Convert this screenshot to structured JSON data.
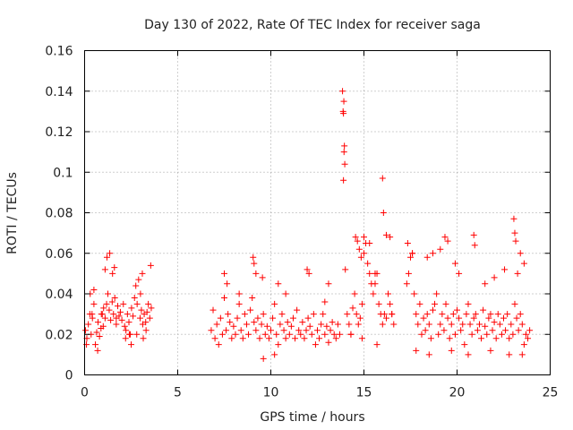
{
  "chart_data": {
    "type": "scatter",
    "title": "Day 130 of 2022, Rate Of TEC Index for receiver saga",
    "xlabel": "GPS time / hours",
    "ylabel": "ROTI / TECUs",
    "xlim": [
      0,
      25
    ],
    "ylim": [
      0,
      0.16
    ],
    "xticks": [
      0,
      5,
      10,
      15,
      20,
      25
    ],
    "xtick_labels": [
      "0",
      "5",
      "10",
      "15",
      "20",
      "25"
    ],
    "yticks": [
      0,
      0.02,
      0.04,
      0.06,
      0.08,
      0.1,
      0.12,
      0.14,
      0.16
    ],
    "ytick_labels": [
      "0",
      "0.02",
      "0.04",
      "0.06",
      "0.08",
      "0.1",
      "0.12",
      "0.14",
      "0.16"
    ],
    "grid": true,
    "marker": "plus",
    "color": "#ff0000",
    "series": [
      {
        "x": [
          0.05,
          0.12,
          0.2,
          0.28,
          0.35,
          0.42,
          0.5,
          0.58,
          0.65,
          0.72,
          0.8,
          0.88,
          0.95,
          1.02,
          1.1,
          1.18,
          1.25,
          1.32,
          1.4,
          1.48,
          1.55,
          1.62,
          1.7,
          1.78,
          1.85,
          1.92,
          2.0,
          2.08,
          2.15,
          2.22,
          2.3,
          2.38,
          2.45,
          2.52,
          2.6,
          2.68,
          2.75,
          2.82,
          2.9,
          2.98,
          3.05,
          3.12,
          3.2,
          3.28,
          3.35,
          3.42,
          3.5,
          3.58,
          0.1,
          0.3,
          0.5,
          0.7,
          0.9,
          1.1,
          1.2,
          1.35,
          1.5,
          1.6,
          2.2,
          2.5,
          2.8,
          3.0,
          3.1,
          3.3,
          3.55,
          0.4,
          1.0,
          1.7,
          2.4,
          3.15,
          6.8,
          6.9,
          7.0,
          7.1,
          7.2,
          7.3,
          7.4,
          7.5,
          7.6,
          7.7,
          7.8,
          7.9,
          8.0,
          8.1,
          8.2,
          8.3,
          8.4,
          8.5,
          8.6,
          8.7,
          8.8,
          8.9,
          9.0,
          9.1,
          9.2,
          9.3,
          9.4,
          9.5,
          9.6,
          9.7,
          9.8,
          9.9,
          10.0,
          10.1,
          10.2,
          10.3,
          10.4,
          10.5,
          10.6,
          10.7,
          10.8,
          10.9,
          11.0,
          11.1,
          11.2,
          11.3,
          11.4,
          11.5,
          11.6,
          11.7,
          11.8,
          11.9,
          12.0,
          12.1,
          12.2,
          12.3,
          12.4,
          12.5,
          12.6,
          12.7,
          12.8,
          12.9,
          13.0,
          13.1,
          13.2,
          13.3,
          13.4,
          13.5,
          13.6,
          13.7,
          7.5,
          7.65,
          8.3,
          9.05,
          9.1,
          9.2,
          9.55,
          10.4,
          10.8,
          11.95,
          12.05,
          12.9,
          13.1,
          9.6,
          10.2,
          13.85,
          13.88,
          13.9,
          13.92,
          13.95,
          13.97,
          13.9,
          13.93,
          14.0,
          14.1,
          14.2,
          14.3,
          14.4,
          14.5,
          14.6,
          14.7,
          14.8,
          14.9,
          15.0,
          15.1,
          15.2,
          15.3,
          15.4,
          15.5,
          15.6,
          15.7,
          15.8,
          15.9,
          16.0,
          16.1,
          16.2,
          16.3,
          16.4,
          16.5,
          16.6,
          14.55,
          14.65,
          14.75,
          14.85,
          15.0,
          15.3,
          15.6,
          16.0,
          16.05,
          16.2,
          16.4,
          14.3,
          14.9,
          15.7,
          16.5,
          17.3,
          17.4,
          17.5,
          17.6,
          17.7,
          17.8,
          17.9,
          18.0,
          18.1,
          18.2,
          18.3,
          18.4,
          18.5,
          18.6,
          18.7,
          18.8,
          18.9,
          19.0,
          19.1,
          19.2,
          19.3,
          19.4,
          19.5,
          19.6,
          19.7,
          19.8,
          19.9,
          20.0,
          20.1,
          20.2,
          20.3,
          20.4,
          20.5,
          20.6,
          20.7,
          20.8,
          20.9,
          21.0,
          21.1,
          21.2,
          21.3,
          21.4,
          21.5,
          21.6,
          21.7,
          21.8,
          21.9,
          22.0,
          22.1,
          22.2,
          22.3,
          22.4,
          22.5,
          22.6,
          22.7,
          22.8,
          22.9,
          23.0,
          23.1,
          23.2,
          23.3,
          23.4,
          23.5,
          23.6,
          23.7,
          23.8,
          23.9,
          17.35,
          17.6,
          18.4,
          18.7,
          19.1,
          19.35,
          19.5,
          19.9,
          20.1,
          20.9,
          20.95,
          21.5,
          22.0,
          22.55,
          23.05,
          23.1,
          23.15,
          23.25,
          23.4,
          23.6,
          17.8,
          18.5,
          19.7,
          20.6,
          21.8,
          22.8,
          23.5
        ],
        "y": [
          0.022,
          0.018,
          0.025,
          0.03,
          0.02,
          0.028,
          0.035,
          0.015,
          0.021,
          0.026,
          0.019,
          0.023,
          0.03,
          0.033,
          0.028,
          0.035,
          0.04,
          0.032,
          0.027,
          0.036,
          0.03,
          0.038,
          0.025,
          0.034,
          0.029,
          0.031,
          0.027,
          0.035,
          0.024,
          0.022,
          0.03,
          0.026,
          0.02,
          0.033,
          0.029,
          0.038,
          0.044,
          0.035,
          0.047,
          0.028,
          0.032,
          0.025,
          0.03,
          0.026,
          0.031,
          0.035,
          0.028,
          0.033,
          0.015,
          0.04,
          0.042,
          0.012,
          0.03,
          0.052,
          0.058,
          0.06,
          0.05,
          0.053,
          0.018,
          0.015,
          0.02,
          0.04,
          0.05,
          0.022,
          0.054,
          0.03,
          0.024,
          0.028,
          0.02,
          0.018,
          0.022,
          0.032,
          0.018,
          0.025,
          0.015,
          0.028,
          0.02,
          0.038,
          0.022,
          0.03,
          0.026,
          0.018,
          0.024,
          0.02,
          0.028,
          0.035,
          0.022,
          0.018,
          0.03,
          0.025,
          0.02,
          0.032,
          0.038,
          0.026,
          0.022,
          0.028,
          0.018,
          0.025,
          0.03,
          0.02,
          0.024,
          0.018,
          0.022,
          0.028,
          0.035,
          0.02,
          0.015,
          0.025,
          0.03,
          0.022,
          0.018,
          0.026,
          0.02,
          0.024,
          0.028,
          0.018,
          0.032,
          0.022,
          0.02,
          0.026,
          0.018,
          0.022,
          0.028,
          0.024,
          0.02,
          0.03,
          0.015,
          0.022,
          0.018,
          0.025,
          0.03,
          0.02,
          0.024,
          0.016,
          0.022,
          0.026,
          0.02,
          0.018,
          0.025,
          0.02,
          0.05,
          0.045,
          0.04,
          0.058,
          0.055,
          0.05,
          0.048,
          0.045,
          0.04,
          0.052,
          0.05,
          0.036,
          0.045,
          0.008,
          0.01,
          0.14,
          0.13,
          0.129,
          0.135,
          0.113,
          0.104,
          0.096,
          0.11,
          0.052,
          0.03,
          0.025,
          0.02,
          0.033,
          0.04,
          0.03,
          0.025,
          0.028,
          0.035,
          0.06,
          0.065,
          0.055,
          0.05,
          0.045,
          0.04,
          0.045,
          0.05,
          0.035,
          0.03,
          0.025,
          0.03,
          0.028,
          0.04,
          0.035,
          0.03,
          0.025,
          0.068,
          0.066,
          0.062,
          0.058,
          0.068,
          0.065,
          0.05,
          0.097,
          0.08,
          0.069,
          0.068,
          0.02,
          0.018,
          0.015,
          0.03,
          0.045,
          0.05,
          0.058,
          0.06,
          0.04,
          0.03,
          0.025,
          0.035,
          0.02,
          0.028,
          0.022,
          0.03,
          0.025,
          0.018,
          0.032,
          0.035,
          0.04,
          0.02,
          0.025,
          0.03,
          0.022,
          0.035,
          0.028,
          0.018,
          0.025,
          0.03,
          0.02,
          0.032,
          0.028,
          0.022,
          0.025,
          0.015,
          0.03,
          0.035,
          0.025,
          0.02,
          0.028,
          0.03,
          0.022,
          0.025,
          0.018,
          0.032,
          0.024,
          0.02,
          0.028,
          0.03,
          0.022,
          0.026,
          0.018,
          0.03,
          0.025,
          0.02,
          0.028,
          0.022,
          0.03,
          0.018,
          0.025,
          0.02,
          0.035,
          0.028,
          0.022,
          0.03,
          0.025,
          0.015,
          0.02,
          0.018,
          0.022,
          0.065,
          0.06,
          0.058,
          0.06,
          0.062,
          0.068,
          0.066,
          0.055,
          0.05,
          0.069,
          0.064,
          0.045,
          0.048,
          0.052,
          0.077,
          0.07,
          0.066,
          0.05,
          0.06,
          0.055,
          0.012,
          0.01,
          0.012,
          0.01,
          0.012,
          0.01,
          0.01
        ]
      }
    ]
  }
}
